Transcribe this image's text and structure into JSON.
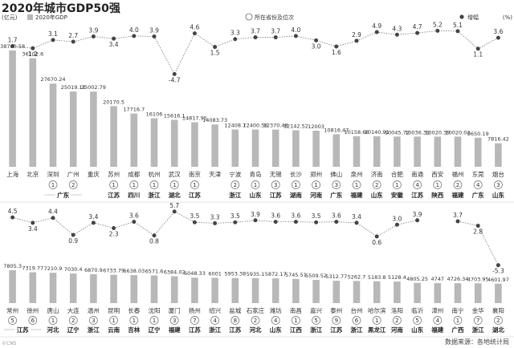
{
  "title": "2020年城市GDP50强",
  "legend": {
    "unit": "(亿元)",
    "gdp_label": "2020年GDP",
    "rank_label": "所在省份及位次",
    "growth_label": "增幅",
    "growth_unit": "(%)"
  },
  "source": "数据来源：各地统计局",
  "watermark": "©CNS",
  "colors": {
    "bar": "#b8b8b8",
    "line": "#777777",
    "dot": "#444444",
    "text": "#333333"
  },
  "chart_data": [
    {
      "type": "bar",
      "series": [
        {
          "name": "2020年GDP",
          "unit": "亿元",
          "kind": "bar",
          "values": [
            38700.58,
            36102.6,
            27670.24,
            25019.11,
            25002.79,
            20170.5,
            17716.7,
            16106,
            15616.1,
            14817.95,
            14083.73,
            12408.7,
            12400.56,
            12370.48,
            12142.52,
            12003,
            10816.47,
            10158.66,
            10140.91,
            10045.72,
            10036.31,
            10020.39,
            10020.02,
            9650.19,
            7816.42
          ]
        },
        {
          "name": "增幅",
          "unit": "%",
          "kind": "line",
          "values": [
            1.7,
            1.2,
            3.1,
            2.7,
            3.9,
            3.4,
            4.0,
            3.9,
            -4.7,
            4.6,
            1.5,
            3.3,
            3.7,
            3.7,
            4.0,
            3.0,
            1.6,
            2.9,
            4.9,
            4.3,
            4.7,
            5.2,
            5.1,
            1.1,
            3.6
          ]
        }
      ],
      "categories": [
        "上海",
        "北京",
        "深圳",
        "广州",
        "重庆",
        "苏州",
        "成都",
        "杭州",
        "武汉",
        "南京",
        "天津",
        "宁波",
        "青岛",
        "无锡",
        "长沙",
        "郑州",
        "佛山",
        "泉州",
        "济南",
        "合肥",
        "南通",
        "西安",
        "福州",
        "东莞",
        "烟台"
      ],
      "rank": [
        "",
        "",
        "1",
        "2",
        "",
        "1",
        "1",
        "1",
        "1",
        "1",
        "",
        "2",
        "1",
        "3",
        "1",
        "1",
        "3",
        "1",
        "2",
        "1",
        "4",
        "1",
        "2",
        "4",
        "3"
      ],
      "province": [
        "",
        "",
        "广东",
        "",
        "",
        "江苏",
        "四川",
        "浙江",
        "湖北",
        "江苏",
        "",
        "浙江",
        "山东",
        "江苏",
        "湖南",
        "河南",
        "",
        "福建",
        "山东",
        "安徽",
        "江苏",
        "陕西",
        "福建",
        "广东",
        "山东"
      ],
      "province_groups": [
        {
          "label": "广东",
          "from": 2,
          "to": 3
        },
        {
          "label": "江苏",
          "from": 5,
          "to": 5
        },
        {
          "label": "四川",
          "from": 6,
          "to": 6
        },
        {
          "label": "浙江",
          "from": 7,
          "to": 7
        },
        {
          "label": "湖北",
          "from": 8,
          "to": 8
        },
        {
          "label": "江苏",
          "from": 9,
          "to": 9
        },
        {
          "label": "浙江",
          "from": 11,
          "to": 11
        },
        {
          "label": "山东",
          "from": 12,
          "to": 12
        },
        {
          "label": "江苏",
          "from": 13,
          "to": 13
        },
        {
          "label": "湖南",
          "from": 14,
          "to": 14
        },
        {
          "label": "河南",
          "from": 15,
          "to": 15
        },
        {
          "label": "广东",
          "from": 16,
          "to": 16
        },
        {
          "label": "福建",
          "from": 17,
          "to": 17
        },
        {
          "label": "山东",
          "from": 18,
          "to": 18
        },
        {
          "label": "安徽",
          "from": 19,
          "to": 19
        },
        {
          "label": "江苏",
          "from": 20,
          "to": 20
        },
        {
          "label": "陕西",
          "from": 21,
          "to": 21
        },
        {
          "label": "福建",
          "from": 22,
          "to": 22
        },
        {
          "label": "广东",
          "from": 23,
          "to": 23
        },
        {
          "label": "山东",
          "from": 24,
          "to": 24
        }
      ],
      "value_labels": [
        "38700.58",
        "36102.6",
        "27670.24",
        "25019.11",
        "25002.79",
        "20170.5",
        "17716.7",
        "16106",
        "15616.1",
        "14817.95",
        "14083.73",
        "12408.7",
        "12400.56",
        "12370.48",
        "12142.52",
        "12003",
        "10816.47",
        "10158.66",
        "10140.91",
        "10045.72",
        "10036.31",
        "10020.39",
        "10020.02",
        "9650.19",
        "7816.42"
      ],
      "growth_labels": [
        "1.7",
        "1.2",
        "3.1",
        "2.7",
        "3.9",
        "3.4",
        "4.0",
        "3.9",
        "-4.7",
        "4.6",
        "1.5",
        "3.3",
        "3.7",
        "3.7",
        "4.0",
        "3.0",
        "1.6",
        "2.9",
        "4.9",
        "4.3",
        "4.7",
        "5.2",
        "5.1",
        "1.1",
        "3.6"
      ]
    },
    {
      "type": "bar",
      "series": [
        {
          "name": "2020年GDP",
          "unit": "亿元",
          "kind": "bar",
          "values": [
            7805.3,
            7319.77,
            7210.9,
            7030.4,
            6870.9,
            6733.79,
            6638.03,
            6571.6,
            6384.02,
            6048.33,
            6001,
            5953.38,
            5935.1,
            5872.17,
            5745.51,
            5509.52,
            5312.77,
            5262.7,
            5183.8,
            5128.4,
            4805.25,
            4747,
            4726.34,
            4703.95,
            4601.97
          ]
        },
        {
          "name": "增幅",
          "unit": "%",
          "kind": "line",
          "values": [
            4.5,
            3.4,
            4.4,
            0.9,
            3.4,
            2.3,
            3.6,
            0.8,
            5.7,
            3.5,
            3.3,
            3.5,
            3.9,
            3.6,
            3.6,
            3.5,
            3.6,
            3.4,
            0.6,
            3.0,
            3.9,
            null,
            3.7,
            2.8,
            -5.3
          ]
        }
      ],
      "categories": [
        "常州",
        "徐州",
        "唐山",
        "大连",
        "温州",
        "昆明",
        "长春",
        "沈阳",
        "厦门",
        "扬州",
        "绍兴",
        "盐城",
        "石家庄",
        "潍坊",
        "南昌",
        "嘉兴",
        "泰州",
        "台州",
        "哈尔滨",
        "洛阳",
        "临沂",
        "漳州",
        "南宁",
        "金华",
        "襄阳"
      ],
      "rank": [
        "5",
        "6",
        "1",
        "2",
        "3",
        "1",
        "1",
        "1",
        "3",
        "7",
        "4",
        "8",
        "2",
        "4",
        "1",
        "5",
        "9",
        "6",
        "1",
        "2",
        "5",
        "4",
        "1",
        "7",
        "2"
      ],
      "province_groups": [
        {
          "label": "江苏",
          "from": 0,
          "to": 1
        },
        {
          "label": "河北",
          "from": 2,
          "to": 2
        },
        {
          "label": "辽宁",
          "from": 3,
          "to": 3
        },
        {
          "label": "浙江",
          "from": 4,
          "to": 4
        },
        {
          "label": "云南",
          "from": 5,
          "to": 5
        },
        {
          "label": "吉林",
          "from": 6,
          "to": 6
        },
        {
          "label": "辽宁",
          "from": 7,
          "to": 7
        },
        {
          "label": "福建",
          "from": 8,
          "to": 8
        },
        {
          "label": "江苏",
          "from": 9,
          "to": 9
        },
        {
          "label": "浙江",
          "from": 10,
          "to": 10
        },
        {
          "label": "江苏",
          "from": 11,
          "to": 11
        },
        {
          "label": "河北",
          "from": 12,
          "to": 12
        },
        {
          "label": "山东",
          "from": 13,
          "to": 13
        },
        {
          "label": "江西",
          "from": 14,
          "to": 14
        },
        {
          "label": "浙江",
          "from": 15,
          "to": 15
        },
        {
          "label": "江苏",
          "from": 16,
          "to": 16
        },
        {
          "label": "浙江",
          "from": 17,
          "to": 17
        },
        {
          "label": "黑龙江",
          "from": 18,
          "to": 18
        },
        {
          "label": "河南",
          "from": 19,
          "to": 19
        },
        {
          "label": "山东",
          "from": 20,
          "to": 20
        },
        {
          "label": "福建",
          "from": 21,
          "to": 21
        },
        {
          "label": "广西",
          "from": 22,
          "to": 22
        },
        {
          "label": "浙江",
          "from": 23,
          "to": 23
        },
        {
          "label": "湖北",
          "from": 24,
          "to": 24
        }
      ],
      "value_labels": [
        "7805.3",
        "7319.77",
        "7210.9",
        "7030.4",
        "6870.9",
        "6733.79",
        "6638.03",
        "6571.6",
        "6384.02",
        "6048.33",
        "6001",
        "5953.38",
        "5935.1",
        "5872.17",
        "5745.51",
        "5509.52",
        "5312.77",
        "5262.7",
        "5183.8",
        "5128.4",
        "4805.25",
        "4747",
        "4726.34",
        "4703.95",
        "4601.97"
      ],
      "growth_labels": [
        "4.5",
        "3.4",
        "4.4",
        "0.9",
        "3.4",
        "2.3",
        "3.6",
        "0.8",
        "5.7",
        "3.5",
        "3.3",
        "3.5",
        "3.9",
        "3.6",
        "3.6",
        "3.5",
        "3.6",
        "3.4",
        "0.6",
        "3.0",
        "3.9",
        "",
        "3.7",
        "2.8",
        "-5.3"
      ]
    }
  ]
}
